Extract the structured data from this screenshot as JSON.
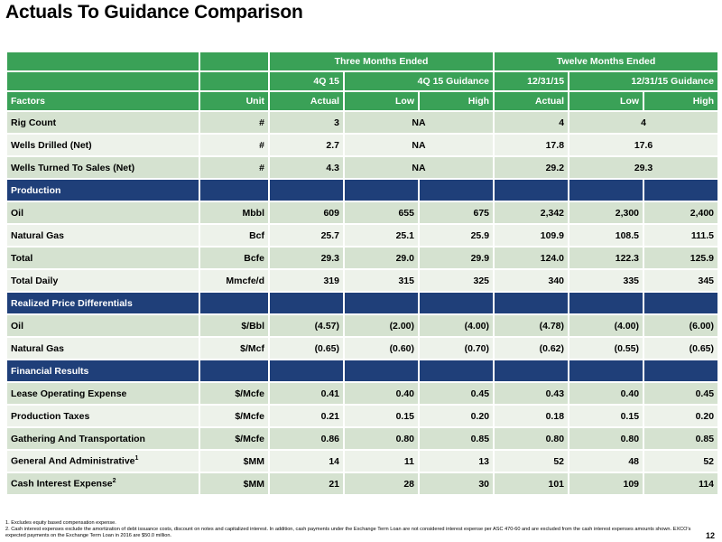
{
  "title": "Actuals To Guidance Comparison",
  "header": {
    "three_months": "Three Months Ended",
    "twelve_months": "Twelve Months Ended",
    "q4_15": "4Q 15",
    "q4_guidance": "4Q 15 Guidance",
    "fy_15": "12/31/15",
    "fy_guidance": "12/31/15 Guidance",
    "factors": "Factors",
    "unit": "Unit",
    "actual": "Actual",
    "low": "Low",
    "high": "High"
  },
  "ops": [
    {
      "factor": "Rig Count",
      "unit": "#",
      "q_actual": "3",
      "q_guidance": "NA",
      "fy_actual": "4",
      "fy_guidance": "4"
    },
    {
      "factor": "Wells Drilled (Net)",
      "unit": "#",
      "q_actual": "2.7",
      "q_guidance": "NA",
      "fy_actual": "17.8",
      "fy_guidance": "17.6"
    },
    {
      "factor": "Wells Turned To Sales (Net)",
      "unit": "#",
      "q_actual": "4.3",
      "q_guidance": "NA",
      "fy_actual": "29.2",
      "fy_guidance": "29.3"
    }
  ],
  "sections": {
    "production": "Production",
    "price": "Realized Price Differentials",
    "financial": "Financial Results"
  },
  "production": [
    {
      "factor": "Oil",
      "unit": "Mbbl",
      "v": [
        "609",
        "655",
        "675",
        "2,342",
        "2,300",
        "2,400"
      ]
    },
    {
      "factor": "Natural Gas",
      "unit": "Bcf",
      "v": [
        "25.7",
        "25.1",
        "25.9",
        "109.9",
        "108.5",
        "111.5"
      ]
    },
    {
      "factor": "Total",
      "unit": "Bcfe",
      "v": [
        "29.3",
        "29.0",
        "29.9",
        "124.0",
        "122.3",
        "125.9"
      ]
    },
    {
      "factor": "Total Daily",
      "unit": "Mmcfe/d",
      "v": [
        "319",
        "315",
        "325",
        "340",
        "335",
        "345"
      ]
    }
  ],
  "price": [
    {
      "factor": "Oil",
      "unit": "$/Bbl",
      "v": [
        "(4.57)",
        "(2.00)",
        "(4.00)",
        "(4.78)",
        "(4.00)",
        "(6.00)"
      ]
    },
    {
      "factor": "Natural Gas",
      "unit": "$/Mcf",
      "v": [
        "(0.65)",
        "(0.60)",
        "(0.70)",
        "(0.62)",
        "(0.55)",
        "(0.65)"
      ]
    }
  ],
  "financial": [
    {
      "factor": "Lease Operating Expense",
      "unit": "$/Mcfe",
      "v": [
        "0.41",
        "0.40",
        "0.45",
        "0.43",
        "0.40",
        "0.45"
      ]
    },
    {
      "factor": "Production Taxes",
      "unit": "$/Mcfe",
      "v": [
        "0.21",
        "0.15",
        "0.20",
        "0.18",
        "0.15",
        "0.20"
      ]
    },
    {
      "factor": "Gathering And Transportation",
      "unit": "$/Mcfe",
      "v": [
        "0.86",
        "0.80",
        "0.85",
        "0.80",
        "0.80",
        "0.85"
      ]
    },
    {
      "factor": "General And Administrative",
      "sup": "1",
      "unit": "$MM",
      "v": [
        "14",
        "11",
        "13",
        "52",
        "48",
        "52"
      ]
    },
    {
      "factor": "Cash Interest Expense",
      "sup": "2",
      "unit": "$MM",
      "v": [
        "21",
        "28",
        "30",
        "101",
        "109",
        "114"
      ]
    }
  ],
  "footnotes": [
    "1.  Excludes equity based compensation expense.",
    "2.  Cash interest expenses exclude the amortization of debt issuance costs, discount on notes and capitalized interest. In addition, cash payments under the Exchange Term Loan are not considered interest expense per ASC 470-60 and are excluded from the cash interest expenses amounts shown. EXCO's expected payments on the Exchange Term Loan in 2016 are $50.0 million."
  ],
  "page_number": "12"
}
